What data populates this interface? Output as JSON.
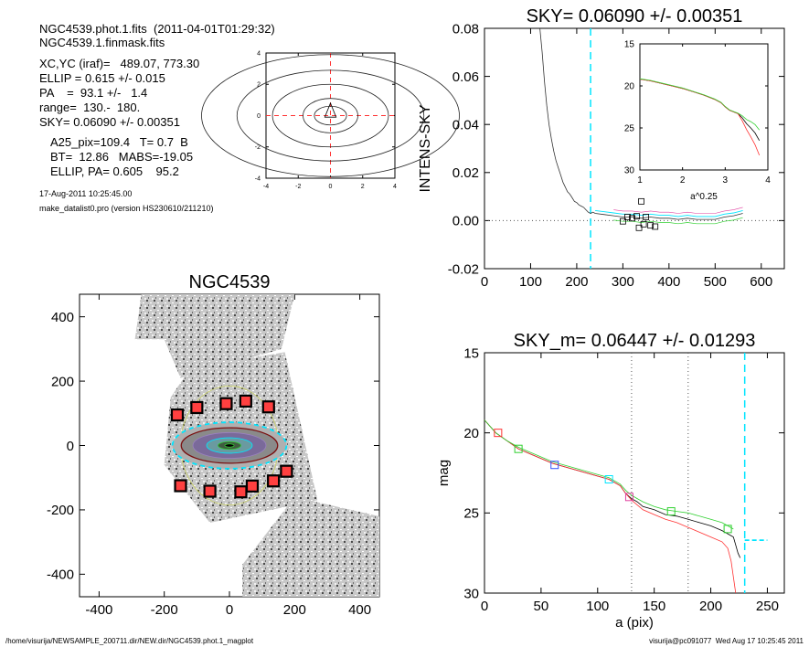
{
  "info": {
    "line1": "NGC4539.phot.1.fits  (2011-04-01T01:29:32)",
    "line2": "NGC4539.1.finmask.fits",
    "line3": "XC,YC (iraf)=   489.07, 773.30",
    "line4": "ELLIP = 0.615 +/- 0.015",
    "line5": "PA    =  93.1 +/-   1.4",
    "line6": "range=  130.-  180.",
    "line7": "SKY= 0.06090 +/- 0.00351",
    "line8": "A25_pix=109.4   T= 0.7  B",
    "line9": "BT=  12.86   MABS=-19.05",
    "line10": "ELLIP, PA= 0.605    95.2",
    "date": "17-Aug-2011 10:25:45.00",
    "program": "make_datalist0.pro (version HS230610/211210)"
  },
  "footer": {
    "left": "/home/visurija/NEWSAMPLE_200711.dir/NEW.dir/NGC4539.phot.1_magplot",
    "right": "visurija@pc091077  Wed Aug 17 10:25:45 2011"
  },
  "colors": {
    "cyan": "#00e5ff",
    "red": "#ff3030",
    "green": "#30d030",
    "blue": "#3050ff",
    "magenta": "#e040a0",
    "gray": "#777777"
  },
  "chart_data": [
    {
      "id": "contour",
      "type": "scatter",
      "title": "",
      "xlim": [
        -4,
        4
      ],
      "ylim": [
        -4,
        4
      ],
      "x_ticks": [
        "-4",
        "-2",
        "0",
        "2",
        "4"
      ],
      "y_ticks": [
        "-4",
        "-2",
        "0",
        "2",
        "4"
      ]
    },
    {
      "id": "sky",
      "type": "line",
      "title": "SKY= 0.06090 +/- 0.00351",
      "xlabel": "",
      "ylabel": "INTENS-SKY",
      "xlim": [
        0,
        650
      ],
      "ylim": [
        -0.02,
        0.08
      ],
      "x_ticks": [
        "0",
        "100",
        "200",
        "300",
        "400",
        "500",
        "600"
      ],
      "y_ticks": [
        "-0.02",
        "0.00",
        "0.02",
        "0.04",
        "0.06",
        "0.08"
      ],
      "cyan_vline_x": 230,
      "profile": {
        "x": [
          120,
          125,
          130,
          135,
          140,
          145,
          150,
          155,
          160,
          165,
          170,
          175,
          180,
          185,
          190,
          195,
          200,
          205,
          210,
          215,
          220,
          225,
          230,
          235,
          240,
          260,
          280,
          300,
          320,
          340,
          360,
          380,
          400,
          420,
          440,
          460,
          480,
          500,
          520,
          540,
          560
        ],
        "y": [
          0.08,
          0.07,
          0.058,
          0.048,
          0.04,
          0.034,
          0.029,
          0.025,
          0.022,
          0.019,
          0.016,
          0.014,
          0.012,
          0.011,
          0.0095,
          0.008,
          0.0075,
          0.0065,
          0.006,
          0.0055,
          0.0045,
          0.0035,
          0.003,
          0.0035,
          0.003,
          0.0025,
          0.002,
          0.0015,
          0.0015,
          0.001,
          0.0015,
          0.001,
          0.001,
          0.0005,
          0.001,
          0.0005,
          0.0005,
          0.0005,
          0.0015,
          0.002,
          0.003
        ]
      },
      "squares": [
        {
          "x": 300,
          "y": -0.0003
        },
        {
          "x": 310,
          "y": 0.0015
        },
        {
          "x": 320,
          "y": 0.001
        },
        {
          "x": 330,
          "y": 0.0018
        },
        {
          "x": 340,
          "y": 0.008
        },
        {
          "x": 345,
          "y": -0.0015
        },
        {
          "x": 350,
          "y": 0.0015
        },
        {
          "x": 360,
          "y": -0.002
        },
        {
          "x": 370,
          "y": -0.0025
        },
        {
          "x": 335,
          "y": -0.003
        }
      ],
      "inset": {
        "xlabel": "a^0.25",
        "xlim": [
          1,
          4
        ],
        "ylim": [
          15,
          30
        ],
        "x_ticks": [
          "1",
          "2",
          "3",
          "4"
        ],
        "y_ticks": [
          "15",
          "20",
          "25",
          "30"
        ],
        "x": [
          1.0,
          1.25,
          1.5,
          1.75,
          2.0,
          2.25,
          2.5,
          2.75,
          2.9,
          3.0,
          3.1,
          3.2,
          3.3,
          3.4,
          3.5,
          3.6,
          3.7,
          3.8
        ],
        "y": [
          19.2,
          19.4,
          19.7,
          20.0,
          20.3,
          20.7,
          21.1,
          21.6,
          22.0,
          22.5,
          22.9,
          23.1,
          23.3,
          23.8,
          24.5,
          25.0,
          25.6,
          26.5
        ]
      }
    },
    {
      "id": "image",
      "type": "scatter",
      "title": "NGC4539",
      "xlim": [
        -460,
        460
      ],
      "ylim": [
        -470,
        470
      ],
      "x_ticks": [
        "-400",
        "-200",
        "0",
        "200",
        "400"
      ],
      "y_ticks": [
        "-400",
        "-200",
        "0",
        "200",
        "400"
      ],
      "masks": [
        {
          "x": -160,
          "y": 95
        },
        {
          "x": -100,
          "y": 118
        },
        {
          "x": -10,
          "y": 130
        },
        {
          "x": 50,
          "y": 138
        },
        {
          "x": 120,
          "y": 120
        },
        {
          "x": 135,
          "y": -110
        },
        {
          "x": 175,
          "y": -80
        },
        {
          "x": 70,
          "y": -126
        },
        {
          "x": -150,
          "y": -125
        },
        {
          "x": -60,
          "y": -142
        },
        {
          "x": 35,
          "y": -144
        }
      ]
    },
    {
      "id": "mag",
      "type": "line",
      "title": "SKY_m=  0.06447 +/- 0.01293",
      "xlabel": "a (pix)",
      "ylabel": "mag",
      "xlim": [
        0,
        265
      ],
      "ylim": [
        15,
        30
      ],
      "x_ticks": [
        "0",
        "50",
        "100",
        "150",
        "200",
        "250"
      ],
      "y_ticks": [
        "15",
        "20",
        "25",
        "30"
      ],
      "dotted_vlines": [
        130,
        180
      ],
      "cyan_vline_x": 230,
      "cyan_hline": {
        "x": [
          230,
          250
        ],
        "y": 26.7
      },
      "series": [
        {
          "color": "black",
          "x": [
            0,
            10,
            20,
            30,
            40,
            50,
            60,
            70,
            80,
            90,
            100,
            110,
            120,
            125,
            130,
            135,
            140,
            150,
            160,
            170,
            180,
            190,
            200,
            210,
            215,
            220,
            222,
            224,
            226
          ],
          "y": [
            19.2,
            20.0,
            20.5,
            21.0,
            21.3,
            21.6,
            21.9,
            22.1,
            22.3,
            22.5,
            22.7,
            22.9,
            23.3,
            23.8,
            24.1,
            24.3,
            24.6,
            24.8,
            25.1,
            25.2,
            25.4,
            25.6,
            25.8,
            26.1,
            26.3,
            26.5,
            27.0,
            27.5,
            27.8
          ]
        },
        {
          "color": "red",
          "x": [
            0,
            10,
            20,
            30,
            40,
            50,
            60,
            70,
            80,
            90,
            100,
            110,
            120,
            125,
            130,
            135,
            140,
            150,
            160,
            170,
            180,
            190,
            200,
            210,
            215,
            218,
            220,
            222
          ],
          "y": [
            19.2,
            20.0,
            20.5,
            21.0,
            21.3,
            21.6,
            21.9,
            22.1,
            22.3,
            22.5,
            22.7,
            22.9,
            23.3,
            23.8,
            24.2,
            24.5,
            24.8,
            25.1,
            25.4,
            25.6,
            25.9,
            26.2,
            26.5,
            26.8,
            27.2,
            28.0,
            29.0,
            30.0
          ]
        },
        {
          "color": "green",
          "x": [
            0,
            10,
            20,
            30,
            40,
            50,
            60,
            70,
            80,
            90,
            100,
            110,
            120,
            125,
            130,
            135,
            140,
            150,
            160,
            170,
            180,
            190,
            200,
            210,
            215,
            220
          ],
          "y": [
            19.2,
            20.0,
            20.5,
            20.9,
            21.2,
            21.5,
            21.8,
            22.0,
            22.2,
            22.4,
            22.6,
            22.8,
            23.2,
            23.6,
            23.9,
            24.1,
            24.3,
            24.6,
            24.8,
            24.9,
            25.0,
            25.2,
            25.4,
            25.6,
            25.8,
            26.0
          ]
        }
      ],
      "squares": [
        {
          "x": 12,
          "y": 20.0,
          "color": "red"
        },
        {
          "x": 30,
          "y": 21.0,
          "color": "green"
        },
        {
          "x": 62,
          "y": 22.0,
          "color": "blue"
        },
        {
          "x": 110,
          "y": 22.9,
          "color": "cyan"
        },
        {
          "x": 128,
          "y": 24.0,
          "color": "magenta"
        },
        {
          "x": 165,
          "y": 24.9,
          "color": "green"
        },
        {
          "x": 215,
          "y": 26.0,
          "color": "green"
        }
      ]
    }
  ]
}
